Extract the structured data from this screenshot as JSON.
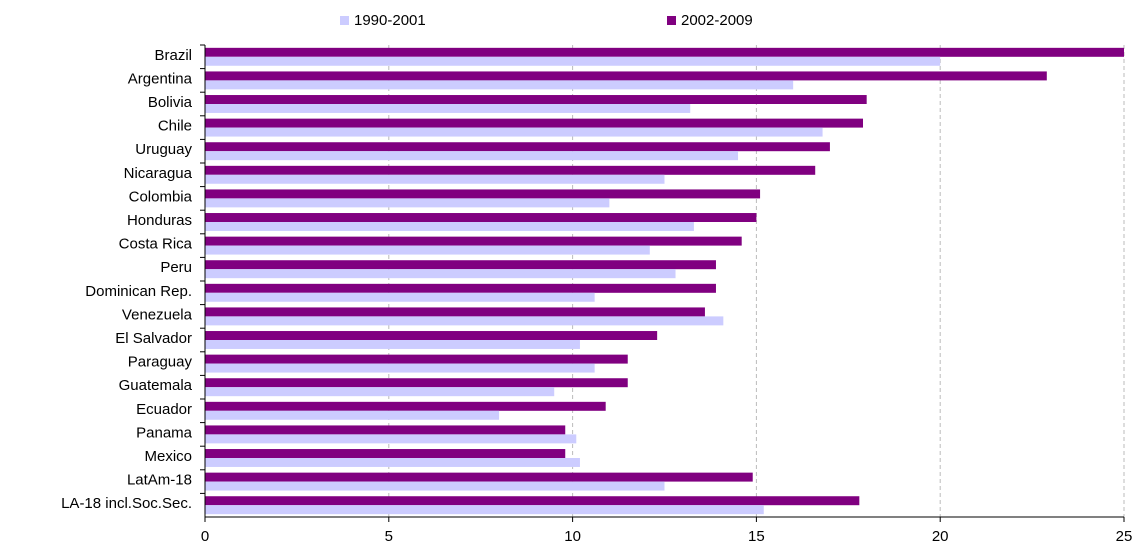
{
  "chart_data": {
    "type": "hbar",
    "categories": [
      "Brazil",
      "Argentina",
      "Bolivia",
      "Chile",
      "Uruguay",
      "Nicaragua",
      "Colombia",
      "Honduras",
      "Costa Rica",
      "Peru",
      "Dominican Rep.",
      "Venezuela",
      "El Salvador",
      "Paraguay",
      "Guatemala",
      "Ecuador",
      "Panama",
      "Mexico",
      "LatAm-18",
      "LA-18 incl.Soc.Sec."
    ],
    "series": [
      {
        "name": "1990-2001",
        "color": "#ccccff",
        "values": [
          20.0,
          16.0,
          13.2,
          16.8,
          14.5,
          12.5,
          11.0,
          13.3,
          12.1,
          12.8,
          10.6,
          14.1,
          10.2,
          10.6,
          9.5,
          8.0,
          10.1,
          10.2,
          12.5,
          15.2
        ]
      },
      {
        "name": "2002-2009",
        "color": "#800080",
        "values": [
          25.0,
          22.9,
          18.0,
          17.9,
          17.0,
          16.6,
          15.1,
          15.0,
          14.6,
          13.9,
          13.9,
          13.6,
          12.3,
          11.5,
          11.5,
          10.9,
          9.8,
          9.8,
          14.9,
          17.8
        ]
      }
    ],
    "xlim": [
      0,
      25
    ],
    "xticks": [
      0,
      5,
      10,
      15,
      20,
      25
    ],
    "grid": true
  }
}
